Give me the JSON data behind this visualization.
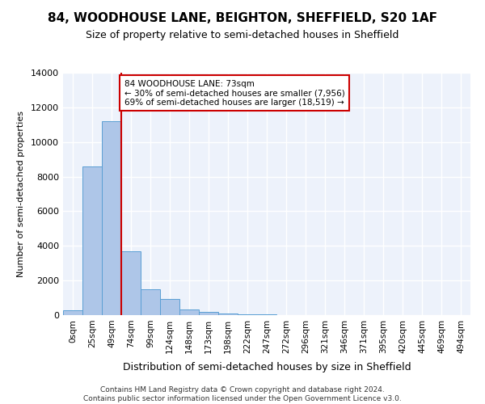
{
  "title": "84, WOODHOUSE LANE, BEIGHTON, SHEFFIELD, S20 1AF",
  "subtitle": "Size of property relative to semi-detached houses in Sheffield",
  "xlabel": "Distribution of semi-detached houses by size in Sheffield",
  "ylabel": "Number of semi-detached properties",
  "footer_line1": "Contains HM Land Registry data © Crown copyright and database right 2024.",
  "footer_line2": "Contains public sector information licensed under the Open Government Licence v3.0.",
  "bin_labels": [
    "0sqm",
    "25sqm",
    "49sqm",
    "74sqm",
    "99sqm",
    "124sqm",
    "148sqm",
    "173sqm",
    "198sqm",
    "222sqm",
    "247sqm",
    "272sqm",
    "296sqm",
    "321sqm",
    "346sqm",
    "371sqm",
    "395sqm",
    "420sqm",
    "445sqm",
    "469sqm",
    "494sqm"
  ],
  "bar_values": [
    300,
    8600,
    11200,
    3700,
    1500,
    950,
    350,
    200,
    100,
    60,
    30,
    10,
    5,
    0,
    0,
    0,
    0,
    0,
    0,
    0,
    0
  ],
  "bar_color": "#aec6e8",
  "bar_edge_color": "#5a9fd4",
  "property_size": 73,
  "vline_x": 2.5,
  "annotation_title": "84 WOODHOUSE LANE: 73sqm",
  "annotation_line1": "← 30% of semi-detached houses are smaller (7,956)",
  "annotation_line2": "69% of semi-detached houses are larger (18,519) →",
  "ylim": [
    0,
    14000
  ],
  "yticks": [
    0,
    2000,
    4000,
    6000,
    8000,
    10000,
    12000,
    14000
  ],
  "background_color": "#edf2fb",
  "grid_color": "#ffffff",
  "vline_color": "#cc0000"
}
